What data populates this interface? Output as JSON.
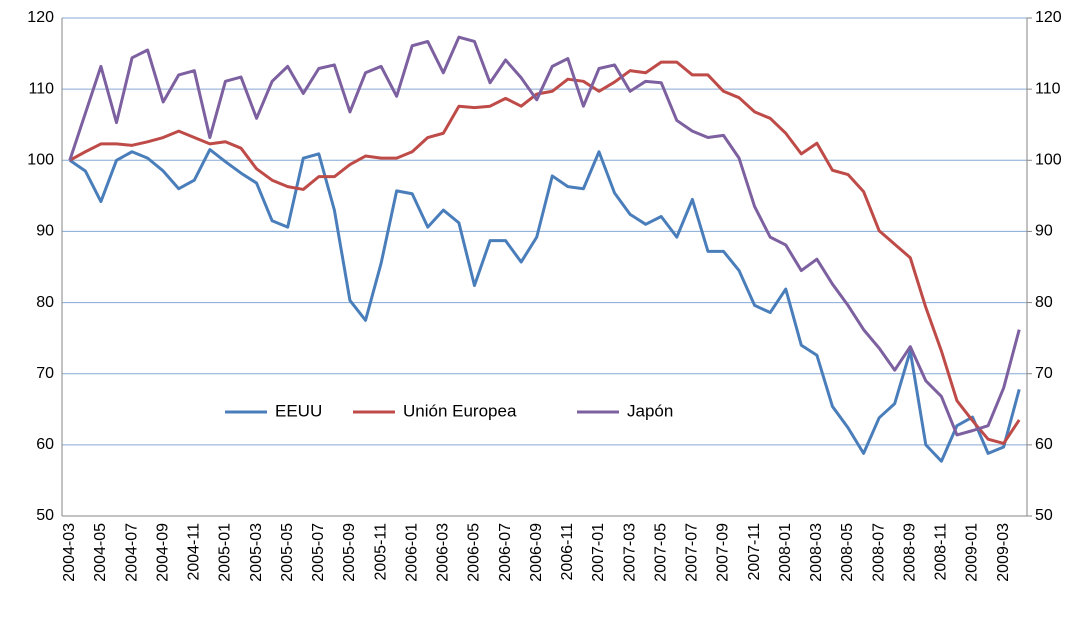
{
  "chart_data": {
    "type": "line",
    "categories": [
      "2004-03",
      null,
      "2004-05",
      null,
      "2004-07",
      null,
      "2004-09",
      null,
      "2004-11",
      null,
      "2005-01",
      null,
      "2005-03",
      null,
      "2005-05",
      null,
      "2005-07",
      null,
      "2005-09",
      null,
      "2005-11",
      null,
      "2006-01",
      null,
      "2006-03",
      null,
      "2006-05",
      null,
      "2006-07",
      null,
      "2006-09",
      null,
      "2006-11",
      null,
      "2007-01",
      null,
      "2007-03",
      null,
      "2007-05",
      null,
      "2007-07",
      null,
      "2007-09",
      null,
      "2007-11",
      null,
      "2008-01",
      null,
      "2008-03",
      null,
      "2008-05",
      null,
      "2008-07",
      null,
      "2008-09",
      null,
      "2008-11",
      null,
      "2009-01",
      null,
      "2009-03",
      null
    ],
    "series": [
      {
        "name": "EEUU",
        "color": "#4a7ebb",
        "values": [
          100,
          98.5,
          94.2,
          100,
          101.2,
          100.3,
          98.5,
          96,
          97.2,
          101.5,
          99.8,
          98.2,
          96.8,
          91.5,
          90.6,
          100.3,
          100.9,
          93,
          80.3,
          77.5,
          85.5,
          95.7,
          95.3,
          90.6,
          93,
          91.2,
          82.4,
          88.7,
          88.7,
          85.7,
          89.2,
          97.8,
          96.3,
          96,
          101.2,
          95.4,
          92.4,
          91,
          92.1,
          89.2,
          94.5,
          87.2,
          87.2,
          84.5,
          79.6,
          78.6,
          81.9,
          74,
          72.6,
          65.4,
          62.4,
          58.8,
          63.8,
          65.8,
          73.2,
          60,
          57.7,
          62.7,
          63.9,
          58.8,
          59.7,
          67.8
        ]
      },
      {
        "name": "Unión Europea",
        "color": "#be4b48",
        "values": [
          100,
          101.2,
          102.3,
          102.3,
          102.1,
          102.6,
          103.2,
          104.1,
          103.2,
          102.3,
          102.6,
          101.7,
          98.8,
          97.2,
          96.3,
          95.9,
          97.7,
          97.7,
          99.4,
          100.6,
          100.3,
          100.3,
          101.2,
          103.2,
          103.8,
          107.6,
          107.4,
          107.6,
          108.7,
          107.6,
          109.3,
          109.7,
          111.4,
          111.1,
          109.7,
          111,
          112.6,
          112.3,
          113.8,
          113.8,
          112,
          112,
          109.7,
          108.8,
          106.8,
          105.9,
          103.8,
          100.9,
          102.4,
          98.6,
          98,
          95.6,
          90.1,
          88.2,
          86.3,
          79.3,
          73.2,
          66.2,
          63.4,
          60.8,
          60.2,
          63.5
        ]
      },
      {
        "name": "Japón",
        "color": "#7d60a0",
        "values": [
          100,
          106.6,
          113.2,
          105.3,
          114.4,
          115.5,
          108.2,
          112,
          112.6,
          103.2,
          111.1,
          111.7,
          105.9,
          111.1,
          113.2,
          109.4,
          112.9,
          113.4,
          106.8,
          112.3,
          113.2,
          109,
          116.1,
          116.7,
          112.3,
          117.3,
          116.7,
          110.9,
          114.1,
          111.6,
          108.5,
          113.2,
          114.3,
          107.6,
          112.9,
          113.4,
          109.7,
          111.1,
          110.9,
          105.6,
          104.1,
          103.2,
          103.5,
          100.3,
          93.5,
          89.2,
          88.1,
          84.5,
          86.1,
          82.6,
          79.6,
          76.2,
          73.6,
          70.5,
          73.8,
          69,
          66.8,
          61.4,
          62,
          62.7,
          68,
          76.2
        ]
      }
    ],
    "ylim": [
      50,
      120
    ],
    "yticks": [
      50,
      60,
      70,
      80,
      90,
      100,
      110,
      120
    ],
    "y2lim": [
      50,
      120
    ],
    "y2ticks": [
      50,
      60,
      70,
      80,
      90,
      100,
      110,
      120
    ],
    "grid": true,
    "legend": "center"
  }
}
